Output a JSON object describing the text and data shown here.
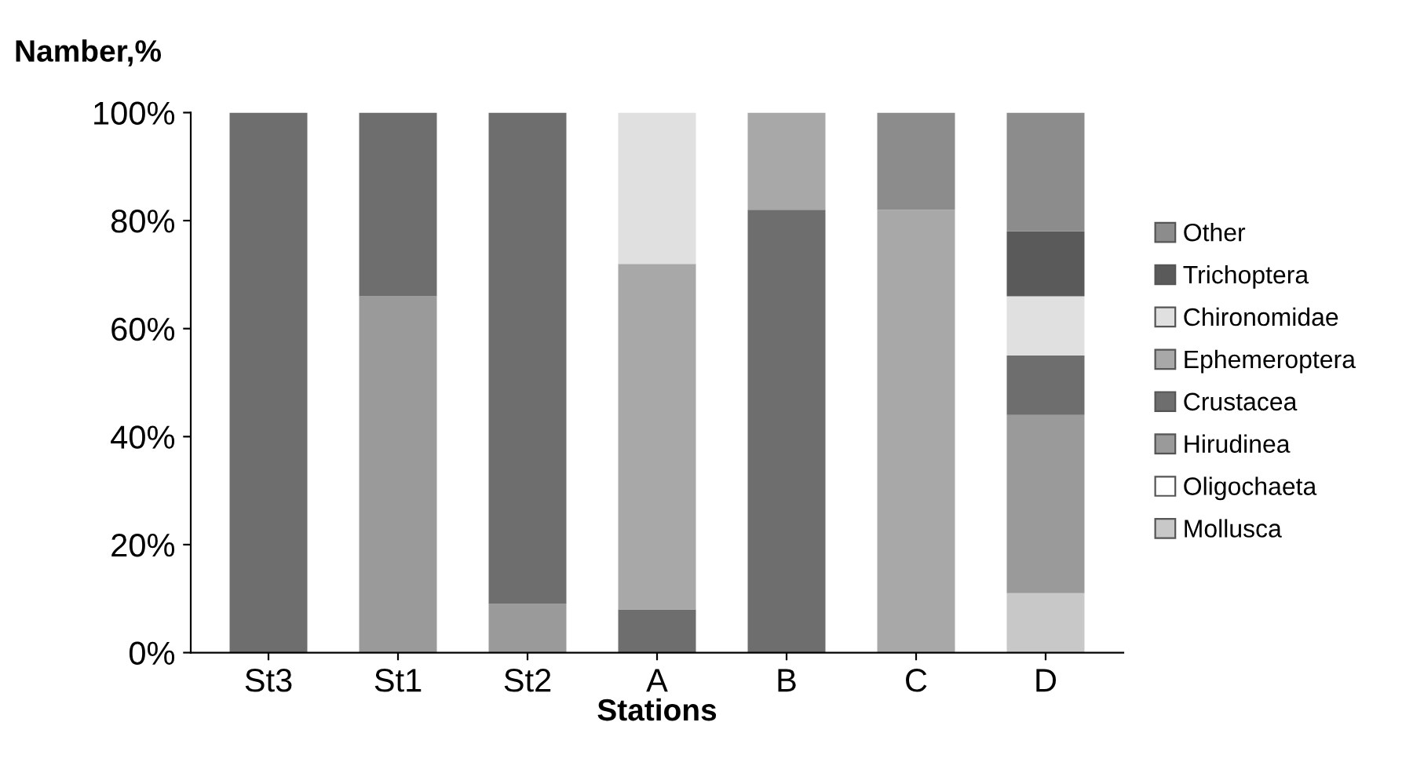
{
  "chart_data": {
    "type": "bar",
    "stacked": true,
    "ylabel": "Namber,%",
    "xlabel": "Stations",
    "categories": [
      "St3",
      "St1",
      "St2",
      "A",
      "B",
      "C",
      "D"
    ],
    "series": [
      {
        "name": "Mollusca",
        "color": "#c8c8c8",
        "values": [
          0,
          0,
          0,
          0,
          0,
          0,
          11
        ]
      },
      {
        "name": "Oligochaeta",
        "color": "#ffffff",
        "values": [
          0,
          0,
          0,
          0,
          0,
          0,
          0
        ]
      },
      {
        "name": "Hirudinea",
        "color": "#9a9a9a",
        "values": [
          0,
          66,
          9,
          0,
          0,
          0,
          33
        ]
      },
      {
        "name": "Crustacea",
        "color": "#6e6e6e",
        "values": [
          100,
          34,
          91,
          8,
          82,
          0,
          11
        ]
      },
      {
        "name": "Ephemeroptera",
        "color": "#a8a8a8",
        "values": [
          0,
          0,
          0,
          64,
          18,
          82,
          0
        ]
      },
      {
        "name": "Chironomidae",
        "color": "#e0e0e0",
        "values": [
          0,
          0,
          0,
          28,
          0,
          0,
          11
        ]
      },
      {
        "name": "Trichoptera",
        "color": "#5a5a5a",
        "values": [
          0,
          0,
          0,
          0,
          0,
          0,
          12
        ]
      },
      {
        "name": "Other",
        "color": "#8c8c8c",
        "values": [
          0,
          0,
          0,
          0,
          0,
          18,
          22
        ]
      }
    ],
    "ylim": [
      0,
      100
    ],
    "yticks": [
      {
        "value": 0,
        "label": "0%"
      },
      {
        "value": 20,
        "label": "20%"
      },
      {
        "value": 40,
        "label": "40%"
      },
      {
        "value": 60,
        "label": "60%"
      },
      {
        "value": 80,
        "label": "80%"
      },
      {
        "value": 100,
        "label": "100%"
      }
    ],
    "legend": "right",
    "grid": false
  }
}
